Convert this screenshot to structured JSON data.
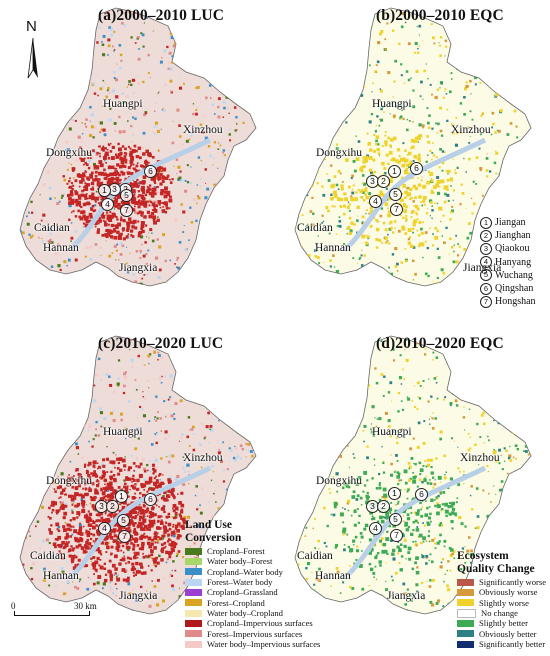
{
  "panels": {
    "a": {
      "title": "(a)2000–2010 LUC"
    },
    "b": {
      "title": "(b)2000–2010 EQC"
    },
    "c": {
      "title": "(c)2010–2020 LUC"
    },
    "d": {
      "title": "(d)2010–2020 EQC"
    }
  },
  "north_label": "N",
  "places": {
    "huangpi": "Huangpi",
    "xinzhou": "Xinzhou",
    "dongxihu": "Dongxihu",
    "caidian": "Caidian",
    "hannan": "Hannan",
    "jiangxia": "Jiangxia"
  },
  "district_numbers": [
    "1",
    "2",
    "3",
    "4",
    "5",
    "6",
    "7"
  ],
  "district_key": [
    {
      "num": "1",
      "name": "Jiangan"
    },
    {
      "num": "2",
      "name": "Jianghan"
    },
    {
      "num": "3",
      "name": "Qiaokou"
    },
    {
      "num": "4",
      "name": "Hanyang"
    },
    {
      "num": "5",
      "name": "Wuchang"
    },
    {
      "num": "6",
      "name": "Qingshan"
    },
    {
      "num": "7",
      "name": "Hongshan"
    }
  ],
  "luc_legend": {
    "title_line1": "Land Use",
    "title_line2": "Conversion",
    "items": [
      {
        "label": "Cropland–Forest",
        "color": "#4a7a1e"
      },
      {
        "label": "Water body–Forest",
        "color": "#a8d86a"
      },
      {
        "label": "Cropland–Water body",
        "color": "#3a8fc8"
      },
      {
        "label": "Forest–Water body",
        "color": "#b9d7f2"
      },
      {
        "label": "Cropland–Grassland",
        "color": "#9b3fd0"
      },
      {
        "label": "Forest–Cropland",
        "color": "#d9a521"
      },
      {
        "label": "Water body–Cropland",
        "color": "#f5e7b0"
      },
      {
        "label": "Cropland–Impervious surfaces",
        "color": "#b11a1a"
      },
      {
        "label": "Forest–Impervious surfaces",
        "color": "#e08a8a"
      },
      {
        "label": "Water body–Impervious surfaces",
        "color": "#f6c9c9"
      }
    ]
  },
  "eqc_legend": {
    "title_line1": "Ecosystem",
    "title_line2": "Quality Change",
    "items": [
      {
        "label": "Significantly worse",
        "color": "#b9574a"
      },
      {
        "label": "Obviously worse",
        "color": "#d79a3a"
      },
      {
        "label": "Slightly worse",
        "color": "#f0d22c"
      },
      {
        "label": "No change",
        "color": "#ffffff"
      },
      {
        "label": "Slightly better",
        "color": "#3daa55"
      },
      {
        "label": "Obviously better",
        "color": "#2f7f86"
      },
      {
        "label": "Significantly better",
        "color": "#132e6e"
      }
    ]
  },
  "scalebar": {
    "start": "0",
    "end": "30 km"
  },
  "colors": {
    "luc_fill": "#eedcd8",
    "luc_urban": "#c42525",
    "eqc_fill": "#fbfbe6",
    "river": "#b8cfe8",
    "boundary": "#666666"
  }
}
